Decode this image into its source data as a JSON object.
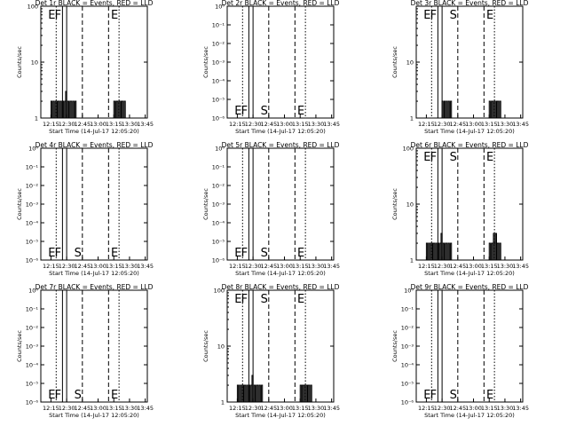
{
  "figure": {
    "background": "#ffffff",
    "foreground": "#000000",
    "events_color": "#000000",
    "lld_color": "#ff0000"
  },
  "chart_data": [
    {
      "type": "line",
      "title": "Det 1r BLACK = Events, RED = LLD",
      "xlabel": "Start Time (14-Jul-17 12:05:20)",
      "ylabel": "Counts/sec",
      "xticks": [
        "12:15",
        "12:30",
        "12:45",
        "13:00",
        "13:15",
        "13:30",
        "13:45"
      ],
      "yscale": "log",
      "yticks": [
        "1",
        "10",
        "100"
      ],
      "markers": [
        "E",
        "F",
        "E"
      ],
      "series": [
        {
          "values": [
            [
              "12:15",
              2
            ],
            [
              "12:16",
              1
            ],
            [
              "12:17",
              2
            ],
            [
              "12:18",
              1
            ],
            [
              "12:19",
              2
            ],
            [
              "12:20",
              1
            ],
            [
              "12:21",
              2
            ],
            [
              "12:22",
              2
            ],
            [
              "12:23",
              1
            ],
            [
              "12:24",
              2
            ],
            [
              "12:25",
              1
            ],
            [
              "12:26",
              2
            ],
            [
              "12:27",
              1
            ],
            [
              "12:28",
              2
            ],
            [
              "12:29",
              3
            ],
            [
              "12:30",
              1
            ],
            [
              "12:31",
              2
            ],
            [
              "12:32",
              1
            ],
            [
              "12:33",
              2
            ],
            [
              "12:34",
              2
            ],
            [
              "12:35",
              1
            ],
            [
              "12:36",
              2
            ],
            [
              "12:37",
              1
            ],
            [
              "12:38",
              2
            ],
            [
              "12:39",
              1
            ],
            [
              "13:15",
              2
            ],
            [
              "13:16",
              1
            ],
            [
              "13:17",
              2
            ],
            [
              "13:18",
              2
            ],
            [
              "13:19",
              1
            ],
            [
              "13:20",
              2
            ],
            [
              "13:21",
              1
            ],
            [
              "13:22",
              2
            ],
            [
              "13:23",
              2
            ],
            [
              "13:24",
              1
            ],
            [
              "13:25",
              2
            ],
            [
              "13:26",
              1
            ]
          ]
        }
      ]
    },
    {
      "type": "line",
      "title": "Det 2r BLACK = Events, RED = LLD",
      "xlabel": "Start Time (14-Jul-17 12:05:20)",
      "ylabel": "Counts/sec",
      "xticks": [
        "12:15",
        "12:30",
        "12:45",
        "13:00",
        "13:15",
        "13:30",
        "13:45"
      ],
      "yscale": "log",
      "yticks": [
        "10⁰",
        "10⁻¹",
        "10⁻²",
        "10⁻³",
        "10⁻⁴",
        "10⁻⁵",
        "10⁻⁶"
      ],
      "markers": [
        "E",
        "F",
        "S",
        "E"
      ],
      "series": []
    },
    {
      "type": "line",
      "title": "Det 3r BLACK = Events, RED = LLD",
      "xlabel": "Start Time (14-Jul-17 12:05:20)",
      "ylabel": "Counts/sec",
      "xticks": [
        "12:15",
        "12:30",
        "12:45",
        "13:00",
        "13:15",
        "13:30",
        "13:45"
      ],
      "yscale": "log",
      "yticks": [
        "1",
        "10"
      ],
      "markers": [
        "E",
        "F",
        "S",
        "E"
      ],
      "series": [
        {
          "values": [
            [
              "12:29",
              1
            ],
            [
              "12:30",
              2
            ],
            [
              "12:31",
              1
            ],
            [
              "12:32",
              2
            ],
            [
              "12:33",
              1
            ],
            [
              "12:34",
              2
            ],
            [
              "12:35",
              1
            ],
            [
              "12:36",
              2
            ],
            [
              "12:37",
              1
            ],
            [
              "12:38",
              2
            ],
            [
              "12:39",
              1
            ],
            [
              "13:15",
              2
            ],
            [
              "13:16",
              1
            ],
            [
              "13:17",
              2
            ],
            [
              "13:18",
              2
            ],
            [
              "13:19",
              1
            ],
            [
              "13:20",
              2
            ],
            [
              "13:21",
              1
            ],
            [
              "13:22",
              2
            ],
            [
              "13:23",
              2
            ],
            [
              "13:24",
              1
            ],
            [
              "13:25",
              2
            ],
            [
              "13:26",
              1
            ]
          ]
        }
      ]
    },
    {
      "type": "line",
      "title": "Det 4r BLACK = Events, RED = LLD",
      "xlabel": "Start Time (14-Jul-17 12:05:20)",
      "ylabel": "Counts/sec",
      "xticks": [
        "12:15",
        "12:30",
        "12:45",
        "13:00",
        "13:15",
        "13:30",
        "13:45"
      ],
      "yscale": "log",
      "yticks": [
        "10⁰",
        "10⁻¹",
        "10⁻²",
        "10⁻³",
        "10⁻⁴",
        "10⁻⁵",
        "10⁻⁶"
      ],
      "markers": [
        "E",
        "F",
        "S",
        "E"
      ],
      "series": []
    },
    {
      "type": "line",
      "title": "Det 5r BLACK = Events, RED = LLD",
      "xlabel": "Start Time (14-Jul-17 12:05:20)",
      "ylabel": "Counts/sec",
      "xticks": [
        "12:15",
        "12:30",
        "12:45",
        "13:00",
        "13:15",
        "13:30",
        "13:45"
      ],
      "yscale": "log",
      "yticks": [
        "10⁰",
        "10⁻¹",
        "10⁻²",
        "10⁻³",
        "10⁻⁴",
        "10⁻⁵",
        "10⁻⁶"
      ],
      "markers": [
        "E",
        "F",
        "S",
        "E"
      ],
      "series": []
    },
    {
      "type": "line",
      "title": "Det 6r BLACK = Events, RED = LLD",
      "xlabel": "Start Time (14-Jul-17 12:05:20)",
      "ylabel": "Counts/sec",
      "xticks": [
        "12:15",
        "12:30",
        "12:45",
        "13:00",
        "13:15",
        "13:30",
        "13:45"
      ],
      "yscale": "log",
      "yticks": [
        "1",
        "10",
        "100"
      ],
      "markers": [
        "E",
        "F",
        "S",
        "E"
      ],
      "series": [
        {
          "values": [
            [
              "12:15",
              2
            ],
            [
              "12:16",
              1
            ],
            [
              "12:17",
              2
            ],
            [
              "12:18",
              1
            ],
            [
              "12:19",
              2
            ],
            [
              "12:20",
              1
            ],
            [
              "12:21",
              2
            ],
            [
              "12:22",
              2
            ],
            [
              "12:23",
              1
            ],
            [
              "12:24",
              2
            ],
            [
              "12:25",
              1
            ],
            [
              "12:26",
              2
            ],
            [
              "12:27",
              1
            ],
            [
              "12:28",
              2
            ],
            [
              "12:29",
              3
            ],
            [
              "12:30",
              1
            ],
            [
              "12:31",
              2
            ],
            [
              "12:32",
              1
            ],
            [
              "12:33",
              2
            ],
            [
              "12:34",
              2
            ],
            [
              "12:35",
              1
            ],
            [
              "12:36",
              2
            ],
            [
              "12:37",
              1
            ],
            [
              "12:38",
              2
            ],
            [
              "12:39",
              1
            ],
            [
              "13:15",
              2
            ],
            [
              "13:16",
              1
            ],
            [
              "13:17",
              2
            ],
            [
              "13:18",
              2
            ],
            [
              "13:19",
              3
            ],
            [
              "13:20",
              2
            ],
            [
              "13:21",
              3
            ],
            [
              "13:22",
              2
            ],
            [
              "13:23",
              2
            ],
            [
              "13:24",
              1
            ],
            [
              "13:25",
              2
            ],
            [
              "13:26",
              1
            ]
          ]
        }
      ]
    },
    {
      "type": "line",
      "title": "Det 7r BLACK = Events, RED = LLD",
      "xlabel": "Start Time (14-Jul-17 12:05:20)",
      "ylabel": "Counts/sec",
      "xticks": [
        "12:15",
        "12:30",
        "12:45",
        "13:00",
        "13:15",
        "13:30",
        "13:45"
      ],
      "yscale": "log",
      "yticks": [
        "10⁰",
        "10⁻¹",
        "10⁻²",
        "10⁻³",
        "10⁻⁴",
        "10⁻⁵",
        "10⁻⁶"
      ],
      "markers": [
        "E",
        "F",
        "S",
        "E"
      ],
      "series": []
    },
    {
      "type": "line",
      "title": "Det 8r BLACK = Events, RED = LLD",
      "xlabel": "Start Time (14-Jul-17 12:05:20)",
      "ylabel": "Counts/sec",
      "xticks": [
        "12:15",
        "12:30",
        "12:45",
        "13:00",
        "13:15",
        "13:30",
        "13:45"
      ],
      "yscale": "log",
      "yticks": [
        "1",
        "10",
        "100"
      ],
      "markers": [
        "E",
        "F",
        "S",
        "E"
      ],
      "series": [
        {
          "values": [
            [
              "12:15",
              2
            ],
            [
              "12:16",
              1
            ],
            [
              "12:17",
              2
            ],
            [
              "12:18",
              1
            ],
            [
              "12:19",
              2
            ],
            [
              "12:20",
              1
            ],
            [
              "12:21",
              2
            ],
            [
              "12:22",
              2
            ],
            [
              "12:23",
              1
            ],
            [
              "12:24",
              2
            ],
            [
              "12:25",
              1
            ],
            [
              "12:26",
              2
            ],
            [
              "12:27",
              1
            ],
            [
              "12:28",
              2
            ],
            [
              "12:29",
              3
            ],
            [
              "12:30",
              1
            ],
            [
              "12:31",
              2
            ],
            [
              "12:32",
              1
            ],
            [
              "12:33",
              2
            ],
            [
              "12:34",
              2
            ],
            [
              "12:35",
              1
            ],
            [
              "12:36",
              2
            ],
            [
              "12:37",
              1
            ],
            [
              "12:38",
              2
            ],
            [
              "12:39",
              1
            ],
            [
              "13:15",
              2
            ],
            [
              "13:16",
              2
            ],
            [
              "13:17",
              2
            ],
            [
              "13:18",
              2
            ],
            [
              "13:19",
              2
            ],
            [
              "13:20",
              1
            ],
            [
              "13:21",
              2
            ],
            [
              "13:22",
              2
            ],
            [
              "13:23",
              2
            ],
            [
              "13:24",
              1
            ],
            [
              "13:25",
              2
            ],
            [
              "13:26",
              1
            ]
          ]
        }
      ]
    },
    {
      "type": "line",
      "title": "Det 9r BLACK = Events, RED = LLD",
      "xlabel": "Start Time (14-Jul-17 12:05:20)",
      "ylabel": "Counts/sec",
      "xticks": [
        "12:15",
        "12:30",
        "12:45",
        "13:00",
        "13:15",
        "13:30",
        "13:45"
      ],
      "yscale": "log",
      "yticks": [
        "10⁰",
        "10⁻¹",
        "10⁻²",
        "10⁻³",
        "10⁻⁴",
        "10⁻⁵",
        "10⁻⁶"
      ],
      "markers": [
        "E",
        "F",
        "S",
        "E"
      ],
      "series": []
    }
  ]
}
